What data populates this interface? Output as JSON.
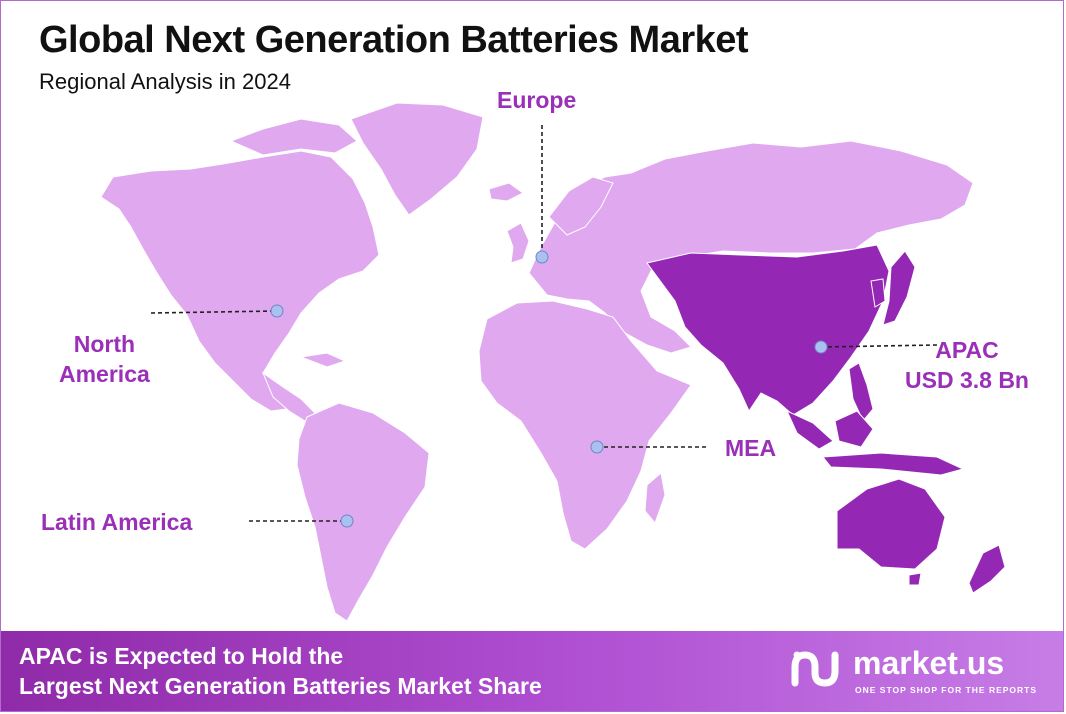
{
  "header": {
    "title": "Global Next Generation Batteries Market",
    "subtitle": "Regional Analysis in 2024"
  },
  "regions": {
    "europe": {
      "label": "Europe"
    },
    "north_america": {
      "label_line1": "North",
      "label_line2": "America"
    },
    "latin_america": {
      "label": "Latin America"
    },
    "mea": {
      "label": "MEA"
    },
    "apac": {
      "label": "APAC",
      "value": "USD 3.8 Bn",
      "highlighted": true
    }
  },
  "banner": {
    "line1": "APAC is Expected to Hold the",
    "line2": "Largest Next Generation Batteries Market Share"
  },
  "logo": {
    "name": "market.us",
    "tagline": "ONE STOP SHOP FOR THE REPORTS"
  },
  "colors": {
    "land": "#e0a8ef",
    "highlight": "#9428b4",
    "label": "#9a2fb8",
    "marker": "#aac0f0",
    "banner_start": "#8f2aa8",
    "banner_end": "#c77de6"
  }
}
